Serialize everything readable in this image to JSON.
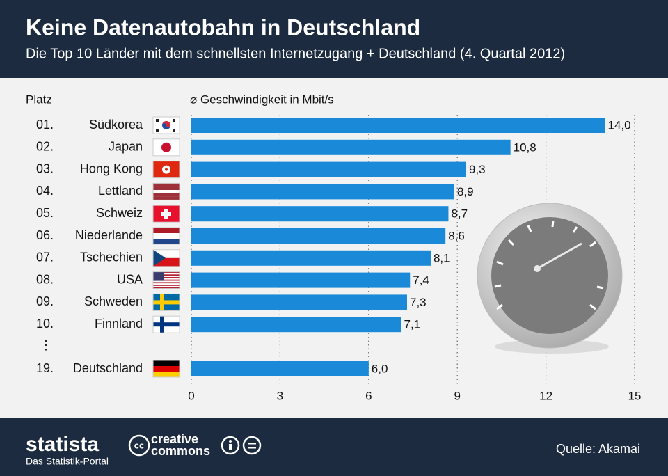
{
  "chart_data": {
    "type": "bar",
    "orientation": "horizontal",
    "title": "Keine Datenautobahn in Deutschland",
    "subtitle": "Die Top 10 Länder mit dem schnellsten Internetzugang + Deutschland (4. Quartal 2012)",
    "rank_header": "Platz",
    "axis_label": "⌀ Geschwindigkeit in Mbit/s",
    "ranks": [
      "01.",
      "02.",
      "03.",
      "04.",
      "05.",
      "06.",
      "07.",
      "08.",
      "09.",
      "10.",
      "19."
    ],
    "categories": [
      "Südkorea",
      "Japan",
      "Hong Kong",
      "Lettland",
      "Schweiz",
      "Niederlande",
      "Tschechien",
      "USA",
      "Schweden",
      "Finnland",
      "Deutschland"
    ],
    "values": [
      14.0,
      10.8,
      9.3,
      8.9,
      8.7,
      8.6,
      8.1,
      7.4,
      7.3,
      7.1,
      6.0
    ],
    "value_labels": [
      "14,0",
      "10,8",
      "9,3",
      "8,9",
      "8,7",
      "8,6",
      "8,1",
      "7,4",
      "7,3",
      "7,1",
      "6,0"
    ],
    "separator": "⋮",
    "color": "#1a8ad8",
    "xlim": [
      0,
      15
    ],
    "xticks": [
      0,
      3,
      6,
      9,
      12,
      15
    ],
    "grid": true
  },
  "footer": {
    "brand": "statista",
    "tagline": "Das Statistik-Portal",
    "license_logo": "cc",
    "license": [
      "creative",
      "commons"
    ],
    "source": "Quelle: Akamai"
  }
}
